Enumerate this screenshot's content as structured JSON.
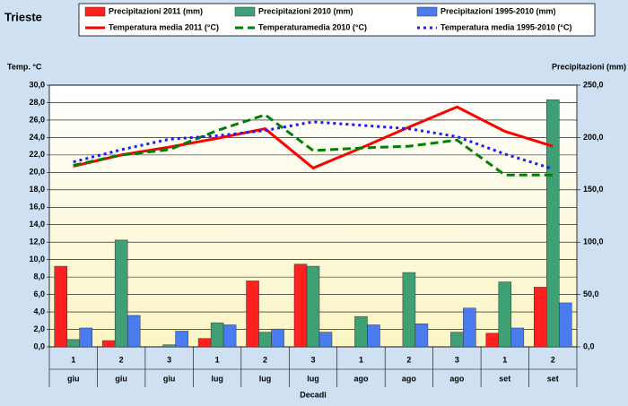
{
  "chart_data": {
    "type": "combo",
    "title": "Trieste",
    "y_label": "Temp. °C",
    "y2_label": "Precipitazioni (mm)",
    "x_label": "Decadi",
    "categories": [
      "1",
      "2",
      "3",
      "1",
      "2",
      "3",
      "1",
      "2",
      "3",
      "1",
      "2"
    ],
    "groups": [
      "giu",
      "giu",
      "giu",
      "lug",
      "lug",
      "lug",
      "ago",
      "ago",
      "ago",
      "set",
      "set"
    ],
    "ylim": [
      0,
      30
    ],
    "yticks": [
      {
        "value": 0,
        "label": "0,0"
      },
      {
        "value": 2,
        "label": "2,0"
      },
      {
        "value": 4,
        "label": "4,0"
      },
      {
        "value": 6,
        "label": "6,0"
      },
      {
        "value": 8,
        "label": "8,0"
      },
      {
        "value": 10,
        "label": "10,0"
      },
      {
        "value": 12,
        "label": "12,0"
      },
      {
        "value": 14,
        "label": "14,0"
      },
      {
        "value": 16,
        "label": "16,0"
      },
      {
        "value": 18,
        "label": "18,0"
      },
      {
        "value": 20,
        "label": "20,0"
      },
      {
        "value": 22,
        "label": "22,0"
      },
      {
        "value": 24,
        "label": "24,0"
      },
      {
        "value": 26,
        "label": "26,0"
      },
      {
        "value": 28,
        "label": "28,0"
      },
      {
        "value": 30,
        "label": "30,0"
      }
    ],
    "y2lim": [
      0,
      250
    ],
    "y2ticks": [
      {
        "value": 0,
        "label": "0,0"
      },
      {
        "value": 50,
        "label": "50,0"
      },
      {
        "value": 100,
        "label": "100,0"
      },
      {
        "value": 150,
        "label": "150,0"
      },
      {
        "value": 200,
        "label": "200,0"
      },
      {
        "value": 250,
        "label": "250,0"
      }
    ],
    "grid": true,
    "series": [
      {
        "name": "Precipitazioni 2011 (mm)",
        "type": "bar",
        "axis": "y2",
        "color": "#ff2020",
        "values": [
          77,
          6,
          0,
          8,
          63,
          79,
          0,
          0,
          0,
          13,
          57
        ]
      },
      {
        "name": "Precipitazioni 2010 (mm)",
        "type": "bar",
        "axis": "y2",
        "color": "#3f9f75",
        "values": [
          7,
          102,
          2,
          23,
          14,
          77,
          29,
          71,
          14,
          62,
          236
        ]
      },
      {
        "name": "Precipitazioni 1995-2010 (mm)",
        "type": "bar",
        "axis": "y2",
        "color": "#4a7cf0",
        "values": [
          18,
          30,
          15,
          21,
          17,
          14,
          21,
          22,
          37,
          18,
          42
        ]
      },
      {
        "name": "Temperatura media 2011 (°C)",
        "type": "line",
        "color": "#ff0000",
        "dash": "none",
        "values": [
          20.7,
          22.0,
          22.9,
          23.9,
          25.0,
          20.5,
          22.8,
          25.2,
          27.5,
          24.7,
          23.0
        ]
      },
      {
        "name": "Temperaturamedia 2010 (°C)",
        "type": "line",
        "color": "#008000",
        "dash": "9,5",
        "values": [
          20.8,
          22.0,
          22.6,
          24.8,
          26.6,
          22.5,
          22.8,
          23.0,
          23.7,
          19.7,
          19.7
        ]
      },
      {
        "name": "Temperatura media 1995-2010 (°C)",
        "type": "line",
        "color": "#1a1aff",
        "dash": "3,4",
        "values": [
          21.2,
          22.6,
          23.8,
          24.2,
          24.8,
          25.8,
          25.4,
          25.0,
          24.1,
          22.1,
          20.4
        ]
      }
    ]
  }
}
